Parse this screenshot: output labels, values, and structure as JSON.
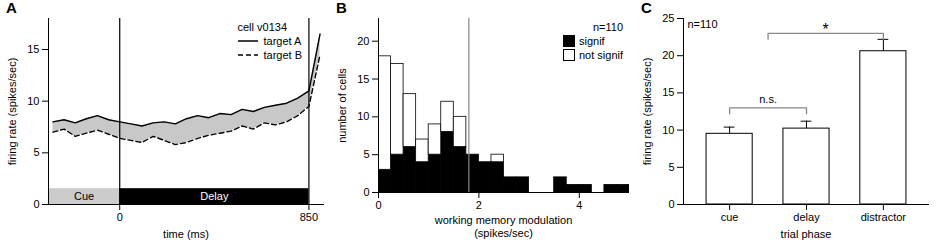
{
  "chart_data": [
    {
      "panel": "A",
      "type": "line",
      "title": "cell v0134",
      "x": [
        -300,
        -250,
        -200,
        -150,
        -100,
        -50,
        0,
        50,
        100,
        150,
        200,
        250,
        300,
        350,
        400,
        450,
        500,
        550,
        600,
        650,
        700,
        750,
        800,
        850,
        900
      ],
      "series": [
        {
          "name": "target A",
          "color": "#000000",
          "line_style": "solid",
          "values": [
            8.0,
            8.2,
            7.9,
            8.3,
            8.6,
            8.2,
            8.0,
            7.8,
            7.6,
            7.9,
            8.0,
            7.8,
            8.3,
            8.6,
            8.4,
            8.8,
            8.7,
            9.2,
            9.0,
            9.4,
            9.6,
            9.8,
            10.3,
            11.0,
            16.5
          ]
        },
        {
          "name": "target B",
          "color": "#000000",
          "line_style": "dashed",
          "values": [
            7.0,
            7.3,
            6.6,
            6.9,
            7.2,
            6.8,
            6.4,
            6.2,
            6.0,
            6.6,
            6.2,
            5.8,
            6.0,
            6.4,
            6.7,
            6.9,
            7.1,
            7.6,
            7.3,
            7.9,
            7.7,
            8.0,
            8.6,
            9.5,
            14.5
          ]
        }
      ],
      "phases": [
        {
          "label": "Cue",
          "start": -320,
          "end": 0,
          "color": "#cccccc"
        },
        {
          "label": "Delay",
          "start": 0,
          "end": 850,
          "color": "#000000"
        }
      ],
      "xlabel": "time (ms)",
      "ylabel": "firing rate (spikes/sec)",
      "xlim": [
        -320,
        920
      ],
      "xticks": [
        0,
        850
      ],
      "ylim": [
        0,
        18
      ],
      "yticks": [
        0,
        5,
        10,
        15
      ],
      "legend": "top-right"
    },
    {
      "panel": "B",
      "type": "histogram",
      "annotation": "n=110",
      "bins": [
        0,
        0.25,
        0.5,
        0.75,
        1,
        1.25,
        1.5,
        1.75,
        2,
        2.25,
        2.5,
        2.75,
        3,
        3.25,
        3.5,
        3.75,
        4,
        4.25,
        4.5,
        4.75,
        5
      ],
      "series": [
        {
          "name": "signif",
          "color": "#000000",
          "values": [
            3,
            5,
            6,
            4,
            5,
            8,
            6,
            5,
            4,
            4,
            2,
            2,
            0,
            0,
            2,
            1,
            1,
            0,
            1,
            1
          ]
        },
        {
          "name": "not signif",
          "color": "#ffffff",
          "values": [
            15,
            12,
            7,
            3,
            4,
            4,
            4,
            0,
            0,
            1,
            0,
            0,
            0,
            0,
            0,
            0,
            0,
            0,
            0,
            0
          ]
        }
      ],
      "stacked": true,
      "reference_x": 1.8,
      "xlabel": "working memory modulation (spikes/sec)",
      "ylabel": "number of cells",
      "xlim": [
        0,
        5
      ],
      "xticks": [
        0,
        2,
        4
      ],
      "ylim": [
        0,
        23
      ],
      "yticks": [
        0,
        5,
        10,
        15,
        20
      ],
      "legend": "top-right"
    },
    {
      "panel": "C",
      "type": "bar",
      "annotation": "n=110",
      "categories": [
        "cue",
        "delay",
        "distractor"
      ],
      "values": [
        9.5,
        10.2,
        20.6
      ],
      "errors": [
        0.9,
        1.0,
        1.6
      ],
      "color": "#ffffff",
      "comparisons": [
        {
          "from": [
            "cue"
          ],
          "to": [
            "delay"
          ],
          "label": "n.s.",
          "y": 13
        },
        {
          "from": [
            "cue",
            "delay"
          ],
          "to": [
            "distractor"
          ],
          "label": "*",
          "y": 23
        }
      ],
      "xlabel": "trial phase",
      "ylabel": "firing rate (spikes/sec)",
      "ylim": [
        0,
        25
      ],
      "yticks": [
        0,
        5,
        10,
        15,
        20,
        25
      ]
    }
  ]
}
